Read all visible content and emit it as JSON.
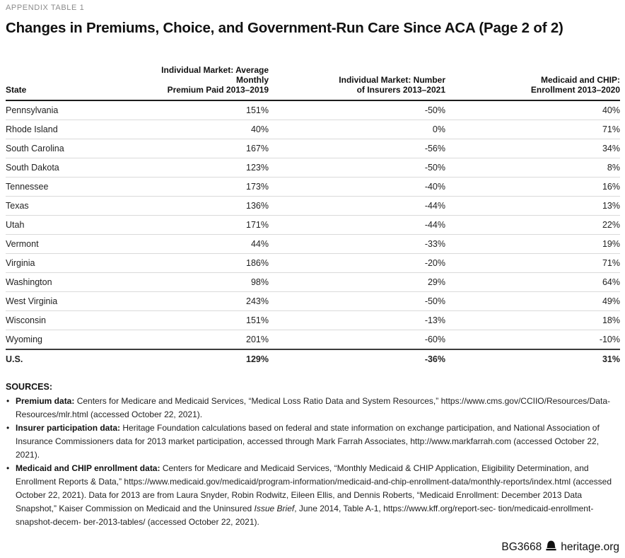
{
  "eyebrow": "APPENDIX TABLE 1",
  "title": "Changes in Premiums, Choice, and Government-Run Care Since ACA (Page 2 of 2)",
  "table": {
    "headers": {
      "state": "State",
      "col2_line1": "Individual Market: Average Monthly",
      "col2_line2": "Premium Paid 2013–2019",
      "col3_line1": "Individual Market: Number",
      "col3_line2": "of Insurers 2013–2021",
      "col4_line1": "Medicaid and CHIP:",
      "col4_line2": "Enrollment 2013–2020"
    },
    "rows": [
      [
        "Pennsylvania",
        "151%",
        "-50%",
        "40%"
      ],
      [
        "Rhode Island",
        "40%",
        "0%",
        "71%"
      ],
      [
        "South Carolina",
        "167%",
        "-56%",
        "34%"
      ],
      [
        "South Dakota",
        "123%",
        "-50%",
        "8%"
      ],
      [
        "Tennessee",
        "173%",
        "-40%",
        "16%"
      ],
      [
        "Texas",
        "136%",
        "-44%",
        "13%"
      ],
      [
        "Utah",
        "171%",
        "-44%",
        "22%"
      ],
      [
        "Vermont",
        "44%",
        "-33%",
        "19%"
      ],
      [
        "Virginia",
        "186%",
        "-20%",
        "71%"
      ],
      [
        "Washington",
        "98%",
        "29%",
        "64%"
      ],
      [
        "West Virginia",
        "243%",
        "-50%",
        "49%"
      ],
      [
        "Wisconsin",
        "151%",
        "-13%",
        "18%"
      ],
      [
        "Wyoming",
        "201%",
        "-60%",
        "-10%"
      ]
    ],
    "total_row": [
      "U.S.",
      "129%",
      "-36%",
      "31%"
    ]
  },
  "sources": {
    "heading": "SOURCES:",
    "items": [
      {
        "parts": [
          {
            "t": "Premium data: ",
            "b": true
          },
          {
            "t": "Centers for Medicare and Medicaid Services, “Medical Loss Ratio Data and System Resources,” https://www.cms.gov/CCIIO/Resources/Data-Resources/mlr.html (accessed October 22, 2021)."
          }
        ]
      },
      {
        "parts": [
          {
            "t": "Insurer participation data: ",
            "b": true
          },
          {
            "t": "Heritage Foundation calculations based on federal and state information on exchange participation, and National Association of Insurance Commissioners data for 2013 market participation, accessed through Mark Farrah Associates, http://www.markfarrah.com (accessed October 22, 2021)."
          }
        ]
      },
      {
        "parts": [
          {
            "t": "Medicaid and CHIP enrollment data: ",
            "b": true
          },
          {
            "t": "Centers for Medicare and Medicaid Services, “Monthly Medicaid & CHIP Application, Eligibility Determination, and Enrollment Reports & Data,” https://www.medicaid.gov/medicaid/program-information/medicaid-and-chip-enrollment-data/monthly-reports/index.html (accessed October 22, 2021). Data for 2013 are from Laura Snyder, Robin Rodwitz, Eileen Ellis, and Dennis Roberts, “Medicaid Enrollment: December 2013 Data Snapshot,” Kaiser Commission on Medicaid and the Uninsured "
          },
          {
            "t": "Issue Brief",
            "i": true
          },
          {
            "t": ", June 2014, Table A-1, https://www.kff.org/report-sec- tion/medicaid-enrollment-snapshot-decem- ber-2013-tables/ (accessed October 22, 2021)."
          }
        ]
      }
    ]
  },
  "footer": {
    "report_id": "BG3668",
    "icon": "heritage-bell-icon",
    "site": "heritage.org"
  }
}
